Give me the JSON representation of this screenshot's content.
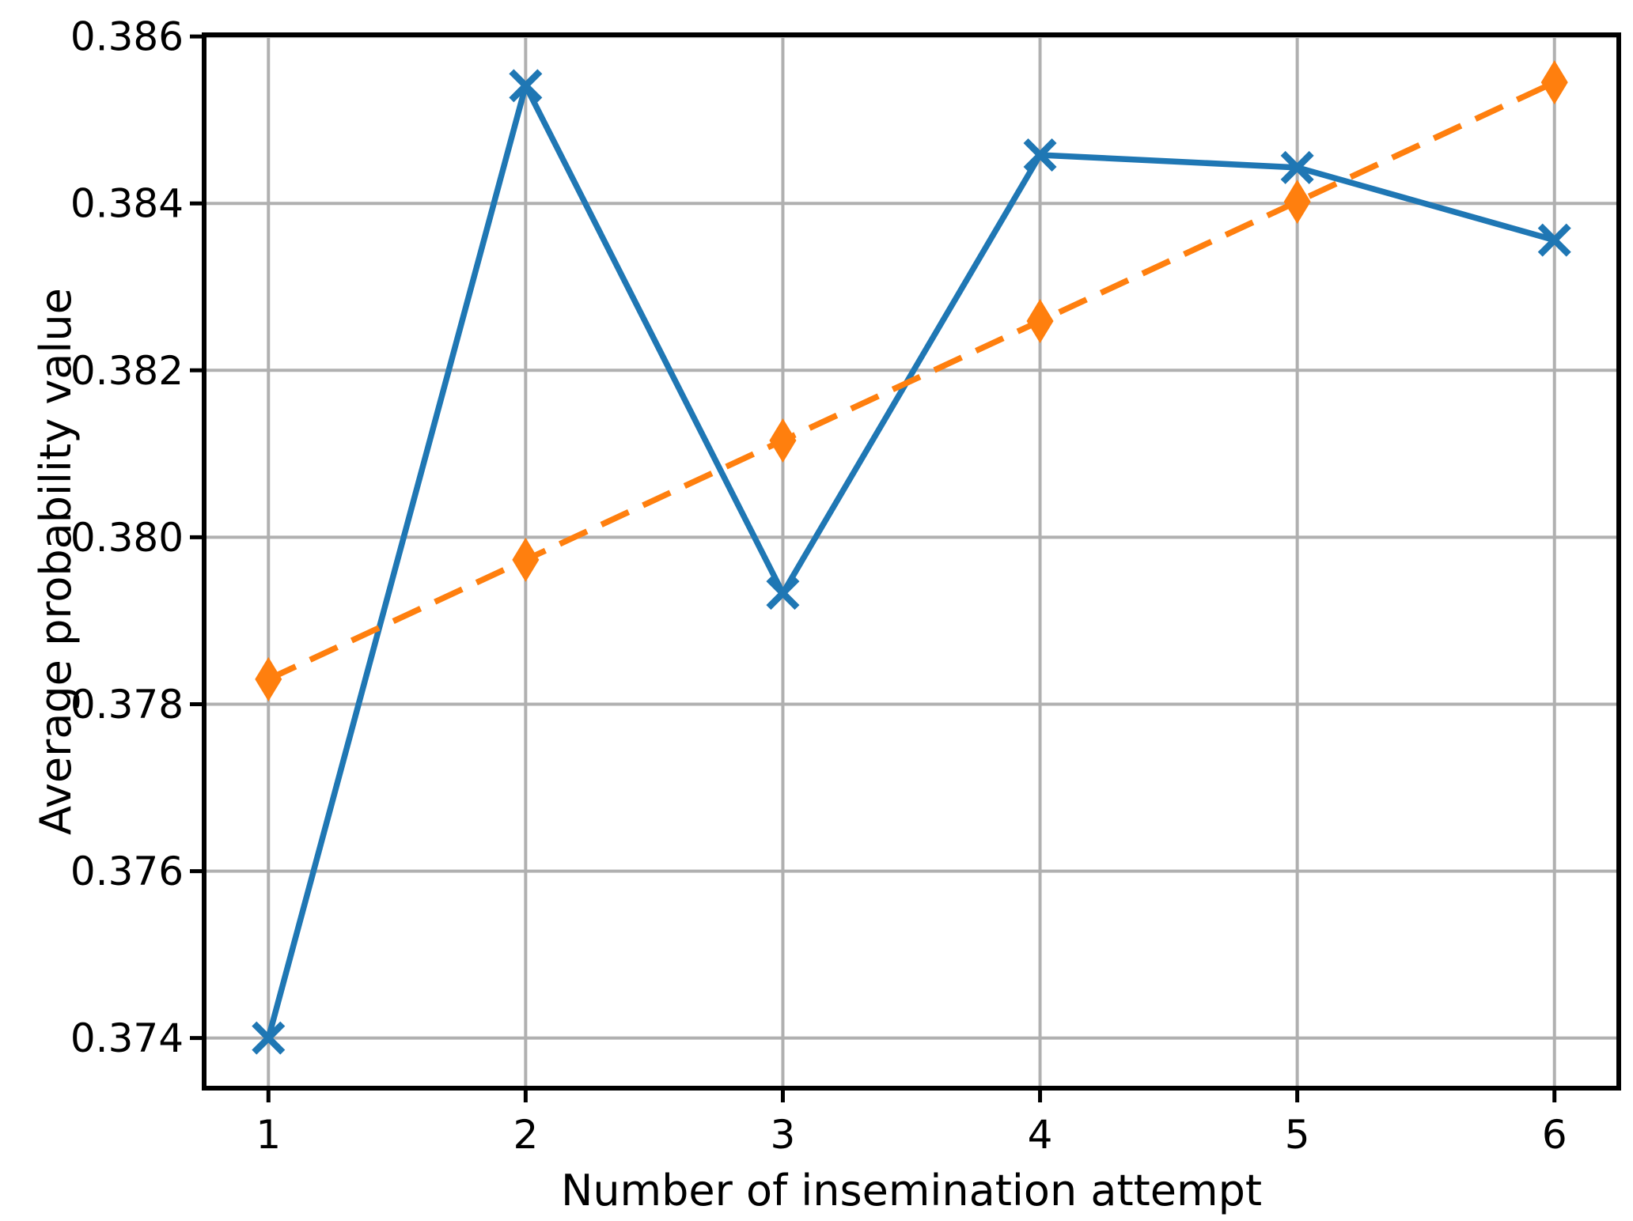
{
  "chart_data": {
    "type": "line",
    "title": "",
    "xlabel": "Number of insemination attempt",
    "ylabel": "Average probability value",
    "x": [
      1,
      2,
      3,
      4,
      5,
      6
    ],
    "xtick_values": [
      1,
      2,
      3,
      4,
      5,
      6
    ],
    "xtick_labels": [
      "1",
      "2",
      "3",
      "4",
      "5",
      "6"
    ],
    "ytick_values": [
      0.374,
      0.376,
      0.378,
      0.38,
      0.382,
      0.384,
      0.386
    ],
    "ytick_labels": [
      "0.374",
      "0.376",
      "0.378",
      "0.380",
      "0.382",
      "0.384",
      "0.386"
    ],
    "xlim": [
      0.75,
      6.25
    ],
    "ylim": [
      0.3734,
      0.38602
    ],
    "grid": true,
    "legend_position": "none",
    "background_color": "#ffffff",
    "grid_color": "#b0b0b0",
    "axis_color": "#000000",
    "series": [
      {
        "name": "blue-solid-line-x-markers",
        "color": "#1f77b4",
        "line_style": "solid",
        "marker": "x",
        "values": [
          0.374,
          0.38541,
          0.37933,
          0.38458,
          0.38443,
          0.38356
        ]
      },
      {
        "name": "orange-dashed-trend-diamond-markers",
        "color": "#ff7f0e",
        "line_style": "dashed",
        "marker": "thin-diamond",
        "values": [
          0.3783,
          0.37973,
          0.38116,
          0.38259,
          0.38402,
          0.38545
        ]
      }
    ]
  }
}
